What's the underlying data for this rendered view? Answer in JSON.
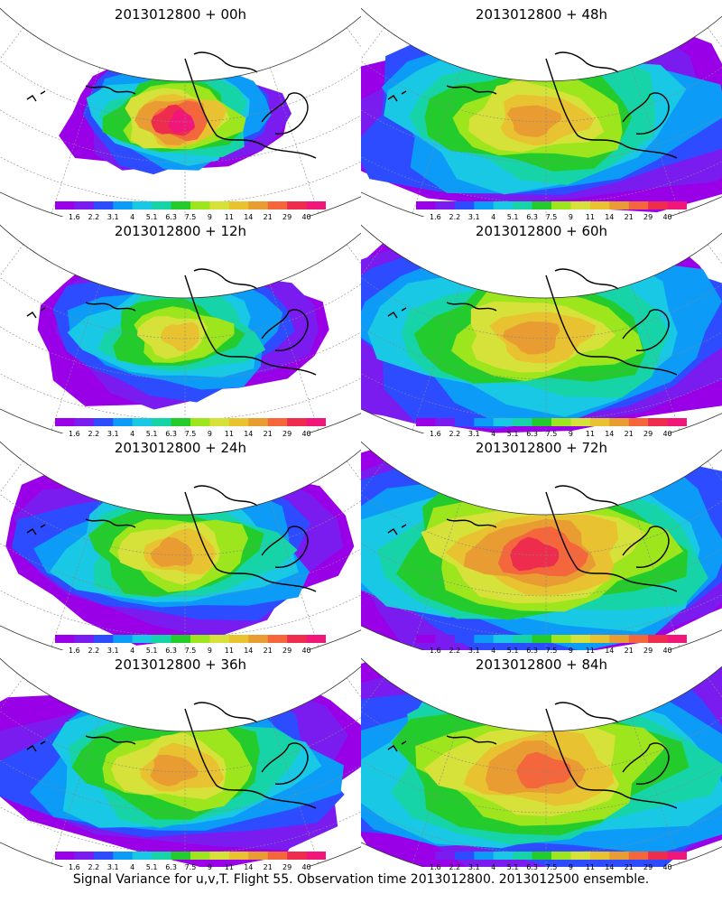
{
  "figure": {
    "footer": "Signal Variance for u,v,T. Flight 55. Observation time 2013012800. 2013012500 ensemble."
  },
  "chart_data": {
    "type": "heatmap",
    "panels": [
      {
        "title": "2013012800 + 00h",
        "lead_hour": 0,
        "peak_level_index": 13,
        "spread": 0.35
      },
      {
        "title": "2013012800 + 12h",
        "lead_hour": 12,
        "peak_level_index": 9,
        "spread": 0.55
      },
      {
        "title": "2013012800 + 24h",
        "lead_hour": 24,
        "peak_level_index": 10,
        "spread": 0.7
      },
      {
        "title": "2013012800 + 36h",
        "lead_hour": 36,
        "peak_level_index": 10,
        "spread": 0.82
      },
      {
        "title": "2013012800 + 48h",
        "lead_hour": 48,
        "peak_level_index": 10,
        "spread": 0.95
      },
      {
        "title": "2013012800 + 60h",
        "lead_hour": 60,
        "peak_level_index": 10,
        "spread": 1.05
      },
      {
        "title": "2013012800 + 72h",
        "lead_hour": 72,
        "peak_level_index": 12,
        "spread": 1.12
      },
      {
        "title": "2013012800 + 84h",
        "lead_hour": 84,
        "peak_level_index": 11,
        "spread": 1.2
      }
    ],
    "colorbar": {
      "labels": [
        "1.6",
        "2.2",
        "3.1",
        "4",
        "5.1",
        "6.3",
        "7.5",
        "9",
        "11",
        "14",
        "21",
        "29",
        "40"
      ],
      "colors": [
        "#9a00e8",
        "#7a1cf0",
        "#2d4bff",
        "#0c9cf7",
        "#18c8e4",
        "#17d4a8",
        "#23cc2c",
        "#9de51c",
        "#d6e23a",
        "#e8c230",
        "#e89c32",
        "#f4663c",
        "#ee2c4e",
        "#f0167a"
      ]
    }
  }
}
